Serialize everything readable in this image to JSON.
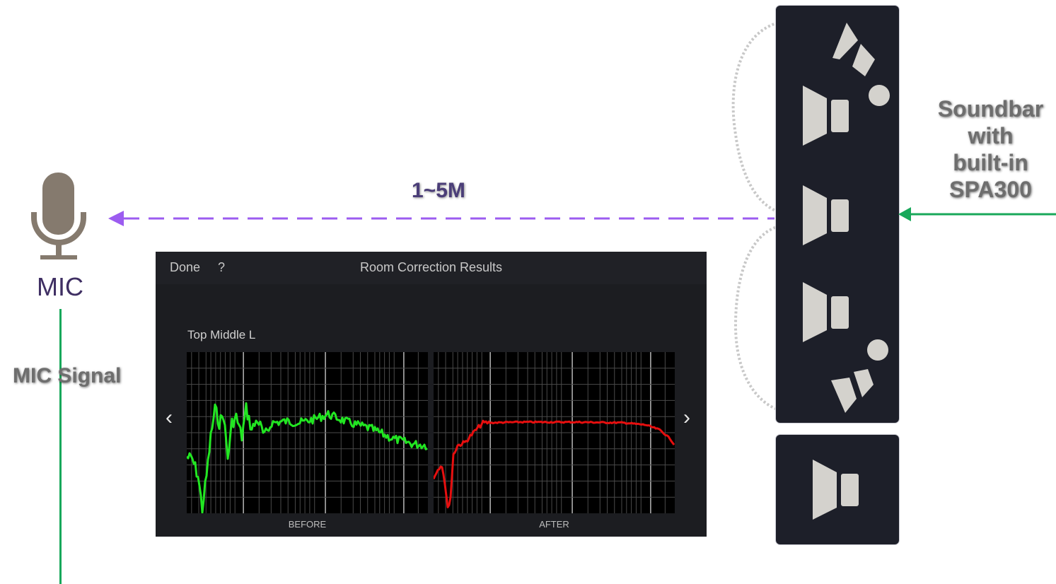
{
  "mic": {
    "label": "MIC",
    "signal_label": "MIC Signal"
  },
  "distance": {
    "label": "1~5M"
  },
  "soundbar": {
    "label_lines": [
      "Soundbar",
      "with",
      "built-in",
      "SPA300"
    ]
  },
  "app": {
    "done_label": "Done",
    "help_label": "?",
    "title": "Room Correction Results",
    "channel": "Top Middle L",
    "prev_icon": "‹",
    "next_icon": "›",
    "before_label": "BEFORE",
    "after_label": "AFTER"
  },
  "colors": {
    "arrow_dashed": "#9c5cf0",
    "signal_line": "#18a85a",
    "before_curve": "#22e622",
    "after_curve": "#e60f0f",
    "soundbar_bg": "#1d1f29",
    "speaker": "#d4d2cd",
    "mic_icon": "#857a6e"
  }
}
